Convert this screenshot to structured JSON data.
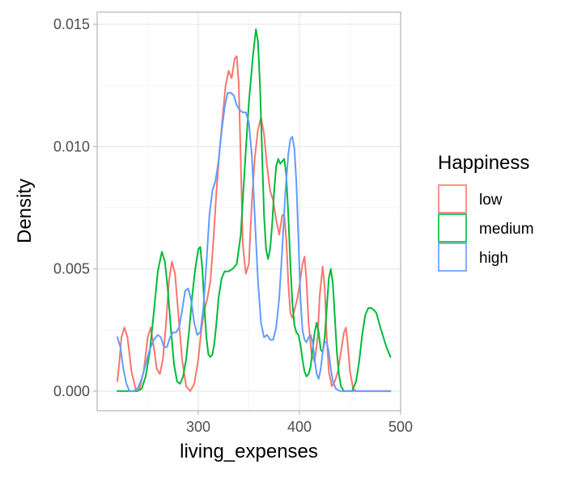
{
  "chart_data": {
    "type": "line",
    "title": "",
    "xlabel": "living_expenses",
    "ylabel": "Density",
    "xlim": [
      200,
      500
    ],
    "ylim": [
      -0.0008,
      0.0155
    ],
    "x_ticks": [
      300,
      400,
      500
    ],
    "x_tick_labels": [
      "300",
      "400",
      "500"
    ],
    "y_ticks": [
      0.0,
      0.005,
      0.01,
      0.015
    ],
    "y_tick_labels": [
      "0.000",
      "0.005",
      "0.010",
      "0.015"
    ],
    "grid": true,
    "legend": {
      "title": "Happiness",
      "placement": "right"
    },
    "series": [
      {
        "name": "low",
        "color": "#F8766D",
        "points": [
          [
            220,
            0.0004
          ],
          [
            222,
            0.0012
          ],
          [
            224,
            0.0022
          ],
          [
            227,
            0.0026
          ],
          [
            230,
            0.0022
          ],
          [
            234,
            0.0008
          ],
          [
            238,
            0.0001
          ],
          [
            242,
            0.0001
          ],
          [
            246,
            0.0008
          ],
          [
            250,
            0.0022
          ],
          [
            253,
            0.0026
          ],
          [
            256,
            0.0018
          ],
          [
            259,
            0.0009
          ],
          [
            262,
            0.0007
          ],
          [
            265,
            0.0013
          ],
          [
            268,
            0.0027
          ],
          [
            271,
            0.0045
          ],
          [
            274,
            0.0053
          ],
          [
            277,
            0.0048
          ],
          [
            280,
            0.0033
          ],
          [
            284,
            0.0013
          ],
          [
            288,
            0.0002
          ],
          [
            292,
            0.0
          ],
          [
            296,
            0.0003
          ],
          [
            300,
            0.0013
          ],
          [
            303,
            0.0025
          ],
          [
            306,
            0.0033
          ],
          [
            309,
            0.0038
          ],
          [
            312,
            0.0045
          ],
          [
            315,
            0.0062
          ],
          [
            318,
            0.0082
          ],
          [
            321,
            0.0098
          ],
          [
            324,
            0.0112
          ],
          [
            327,
            0.0125
          ],
          [
            330,
            0.0131
          ],
          [
            333,
            0.0128
          ],
          [
            336,
            0.0136
          ],
          [
            338,
            0.0137
          ],
          [
            340,
            0.0126
          ],
          [
            342,
            0.0094
          ],
          [
            344,
            0.006
          ],
          [
            347,
            0.0048
          ],
          [
            350,
            0.0052
          ],
          [
            353,
            0.0078
          ],
          [
            356,
            0.0096
          ],
          [
            359,
            0.0107
          ],
          [
            362,
            0.0112
          ],
          [
            365,
            0.0105
          ],
          [
            368,
            0.0092
          ],
          [
            371,
            0.0082
          ],
          [
            374,
            0.0078
          ],
          [
            377,
            0.007
          ],
          [
            380,
            0.0064
          ],
          [
            383,
            0.0072
          ],
          [
            385,
            0.0072
          ],
          [
            387,
            0.0062
          ],
          [
            389,
            0.0044
          ],
          [
            391,
            0.0032
          ],
          [
            393,
            0.003
          ],
          [
            395,
            0.0033
          ],
          [
            398,
            0.0038
          ],
          [
            401,
            0.0046
          ],
          [
            403,
            0.0052
          ],
          [
            405,
            0.0055
          ],
          [
            407,
            0.0045
          ],
          [
            409,
            0.0028
          ],
          [
            412,
            0.0015
          ],
          [
            415,
            0.0012
          ],
          [
            418,
            0.0022
          ],
          [
            420,
            0.0039
          ],
          [
            423,
            0.0051
          ],
          [
            425,
            0.0042
          ],
          [
            427,
            0.0022
          ],
          [
            429,
            0.0008
          ],
          [
            432,
            0.0002
          ],
          [
            435,
            0.0004
          ],
          [
            438,
            0.0008
          ],
          [
            441,
            0.0016
          ],
          [
            444,
            0.0024
          ],
          [
            446,
            0.0026
          ],
          [
            448,
            0.0018
          ],
          [
            450,
            0.0008
          ],
          [
            453,
            0.0001
          ],
          [
            456,
            0.0
          ],
          [
            460,
            0.0
          ],
          [
            470,
            0.0
          ],
          [
            480,
            0.0
          ],
          [
            490,
            0.0
          ]
        ]
      },
      {
        "name": "medium",
        "color": "#00BA38",
        "points": [
          [
            220,
            0.0
          ],
          [
            240,
            0.0
          ],
          [
            244,
            0.0001
          ],
          [
            248,
            0.0006
          ],
          [
            252,
            0.0016
          ],
          [
            256,
            0.0032
          ],
          [
            260,
            0.0049
          ],
          [
            264,
            0.0057
          ],
          [
            267,
            0.0053
          ],
          [
            270,
            0.0041
          ],
          [
            273,
            0.0025
          ],
          [
            276,
            0.0011
          ],
          [
            279,
            0.0004
          ],
          [
            282,
            0.0003
          ],
          [
            285,
            0.0006
          ],
          [
            288,
            0.0013
          ],
          [
            291,
            0.0025
          ],
          [
            294,
            0.0039
          ],
          [
            297,
            0.005
          ],
          [
            300,
            0.0058
          ],
          [
            302,
            0.0059
          ],
          [
            304,
            0.005
          ],
          [
            306,
            0.0035
          ],
          [
            308,
            0.0022
          ],
          [
            310,
            0.0015
          ],
          [
            312,
            0.0014
          ],
          [
            314,
            0.0015
          ],
          [
            316,
            0.002
          ],
          [
            318,
            0.0028
          ],
          [
            320,
            0.0038
          ],
          [
            323,
            0.0046
          ],
          [
            326,
            0.0049
          ],
          [
            330,
            0.0049
          ],
          [
            334,
            0.005
          ],
          [
            338,
            0.0052
          ],
          [
            342,
            0.0064
          ],
          [
            346,
            0.0092
          ],
          [
            350,
            0.0118
          ],
          [
            354,
            0.0137
          ],
          [
            357,
            0.0148
          ],
          [
            359,
            0.0143
          ],
          [
            361,
            0.0125
          ],
          [
            363,
            0.0098
          ],
          [
            365,
            0.0072
          ],
          [
            367,
            0.0058
          ],
          [
            369,
            0.0054
          ],
          [
            371,
            0.0058
          ],
          [
            373,
            0.0068
          ],
          [
            375,
            0.0082
          ],
          [
            377,
            0.0092
          ],
          [
            379,
            0.0095
          ],
          [
            381,
            0.0093
          ],
          [
            383,
            0.0094
          ],
          [
            385,
            0.0095
          ],
          [
            387,
            0.0088
          ],
          [
            389,
            0.0072
          ],
          [
            391,
            0.0052
          ],
          [
            393,
            0.0036
          ],
          [
            395,
            0.0027
          ],
          [
            397,
            0.0024
          ],
          [
            399,
            0.0023
          ],
          [
            401,
            0.0019
          ],
          [
            403,
            0.0013
          ],
          [
            405,
            0.0008
          ],
          [
            407,
            0.0006
          ],
          [
            409,
            0.0007
          ],
          [
            411,
            0.001
          ],
          [
            413,
            0.0017
          ],
          [
            415,
            0.0024
          ],
          [
            417,
            0.0028
          ],
          [
            419,
            0.0024
          ],
          [
            421,
            0.0017
          ],
          [
            423,
            0.0016
          ],
          [
            425,
            0.0022
          ],
          [
            427,
            0.0034
          ],
          [
            429,
            0.0046
          ],
          [
            431,
            0.005
          ],
          [
            433,
            0.0044
          ],
          [
            435,
            0.003
          ],
          [
            437,
            0.0016
          ],
          [
            439,
            0.0007
          ],
          [
            441,
            0.0002
          ],
          [
            444,
            0.0
          ],
          [
            448,
            0.0
          ],
          [
            452,
            0.0
          ],
          [
            456,
            0.0004
          ],
          [
            459,
            0.0012
          ],
          [
            462,
            0.0023
          ],
          [
            465,
            0.0031
          ],
          [
            468,
            0.0034
          ],
          [
            471,
            0.0034
          ],
          [
            474,
            0.0033
          ],
          [
            476,
            0.0032
          ],
          [
            478,
            0.0029
          ],
          [
            480,
            0.0026
          ],
          [
            483,
            0.0022
          ],
          [
            486,
            0.0018
          ],
          [
            490,
            0.0014
          ]
        ]
      },
      {
        "name": "high",
        "color": "#619CFF",
        "points": [
          [
            220,
            0.0022
          ],
          [
            223,
            0.0018
          ],
          [
            226,
            0.0009
          ],
          [
            229,
            0.0003
          ],
          [
            232,
            0.0
          ],
          [
            236,
            0.0
          ],
          [
            240,
            0.0001
          ],
          [
            244,
            0.0005
          ],
          [
            248,
            0.0011
          ],
          [
            252,
            0.0017
          ],
          [
            256,
            0.0021
          ],
          [
            260,
            0.0023
          ],
          [
            263,
            0.0022
          ],
          [
            266,
            0.0018
          ],
          [
            269,
            0.0018
          ],
          [
            272,
            0.0022
          ],
          [
            275,
            0.0024
          ],
          [
            278,
            0.0024
          ],
          [
            281,
            0.0026
          ],
          [
            284,
            0.0033
          ],
          [
            287,
            0.0041
          ],
          [
            290,
            0.0042
          ],
          [
            293,
            0.0037
          ],
          [
            296,
            0.0028
          ],
          [
            299,
            0.0023
          ],
          [
            302,
            0.0024
          ],
          [
            305,
            0.0034
          ],
          [
            308,
            0.0052
          ],
          [
            311,
            0.0072
          ],
          [
            314,
            0.0082
          ],
          [
            317,
            0.0086
          ],
          [
            320,
            0.0094
          ],
          [
            323,
            0.0106
          ],
          [
            326,
            0.0116
          ],
          [
            329,
            0.0122
          ],
          [
            332,
            0.0122
          ],
          [
            335,
            0.0121
          ],
          [
            338,
            0.0117
          ],
          [
            341,
            0.0115
          ],
          [
            344,
            0.0114
          ],
          [
            347,
            0.0114
          ],
          [
            350,
            0.011
          ],
          [
            353,
            0.0096
          ],
          [
            356,
            0.007
          ],
          [
            359,
            0.0045
          ],
          [
            362,
            0.0028
          ],
          [
            365,
            0.0022
          ],
          [
            368,
            0.0023
          ],
          [
            371,
            0.0021
          ],
          [
            374,
            0.0021
          ],
          [
            377,
            0.0026
          ],
          [
            380,
            0.0038
          ],
          [
            383,
            0.0058
          ],
          [
            386,
            0.0081
          ],
          [
            389,
            0.0097
          ],
          [
            391,
            0.0103
          ],
          [
            393,
            0.0104
          ],
          [
            395,
            0.0099
          ],
          [
            397,
            0.0085
          ],
          [
            399,
            0.0062
          ],
          [
            401,
            0.0038
          ],
          [
            403,
            0.0025
          ],
          [
            405,
            0.0021
          ],
          [
            407,
            0.002
          ],
          [
            409,
            0.0022
          ],
          [
            411,
            0.0023
          ],
          [
            413,
            0.002
          ],
          [
            415,
            0.0013
          ],
          [
            417,
            0.0007
          ],
          [
            419,
            0.0005
          ],
          [
            421,
            0.0009
          ],
          [
            423,
            0.0016
          ],
          [
            425,
            0.002
          ],
          [
            427,
            0.002
          ],
          [
            429,
            0.0016
          ],
          [
            431,
            0.0009
          ],
          [
            433,
            0.0004
          ],
          [
            436,
            0.0001
          ],
          [
            440,
            0.0
          ],
          [
            450,
            0.0
          ],
          [
            460,
            0.0
          ],
          [
            470,
            0.0
          ],
          [
            480,
            0.0
          ],
          [
            490,
            0.0
          ]
        ]
      }
    ]
  }
}
